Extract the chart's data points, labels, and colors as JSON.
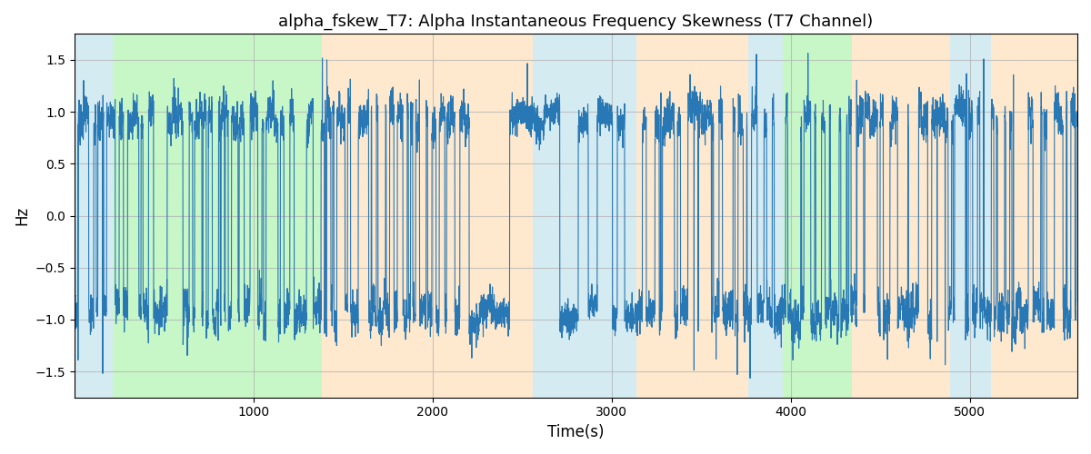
{
  "title": "alpha_fskew_T7: Alpha Instantaneous Frequency Skewness (T7 Channel)",
  "xlabel": "Time(s)",
  "ylabel": "Hz",
  "xlim": [
    0,
    5600
  ],
  "ylim": [
    -1.75,
    1.75
  ],
  "yticks": [
    -1.5,
    -1.0,
    -0.5,
    0.0,
    0.5,
    1.0,
    1.5
  ],
  "xticks": [
    1000,
    2000,
    3000,
    4000,
    5000
  ],
  "line_color": "#2878b5",
  "line_width": 0.8,
  "bg_bands": [
    {
      "start": 0,
      "end": 215,
      "color": "#add8e6",
      "alpha": 0.5
    },
    {
      "start": 215,
      "end": 1380,
      "color": "#90ee90",
      "alpha": 0.5
    },
    {
      "start": 1380,
      "end": 2560,
      "color": "#ffd59f",
      "alpha": 0.5
    },
    {
      "start": 2560,
      "end": 3140,
      "color": "#add8e6",
      "alpha": 0.5
    },
    {
      "start": 3140,
      "end": 3760,
      "color": "#ffd59f",
      "alpha": 0.5
    },
    {
      "start": 3760,
      "end": 3955,
      "color": "#add8e6",
      "alpha": 0.5
    },
    {
      "start": 3955,
      "end": 4340,
      "color": "#90ee90",
      "alpha": 0.5
    },
    {
      "start": 4340,
      "end": 4890,
      "color": "#ffd59f",
      "alpha": 0.5
    },
    {
      "start": 4890,
      "end": 5120,
      "color": "#add8e6",
      "alpha": 0.5
    },
    {
      "start": 5120,
      "end": 5600,
      "color": "#ffd59f",
      "alpha": 0.5
    }
  ],
  "grid_color": "#b0b0b0",
  "grid_alpha": 0.7,
  "grid_linewidth": 0.8,
  "figsize": [
    12,
    5
  ],
  "dpi": 100,
  "seed": 99,
  "n_points": 5600
}
